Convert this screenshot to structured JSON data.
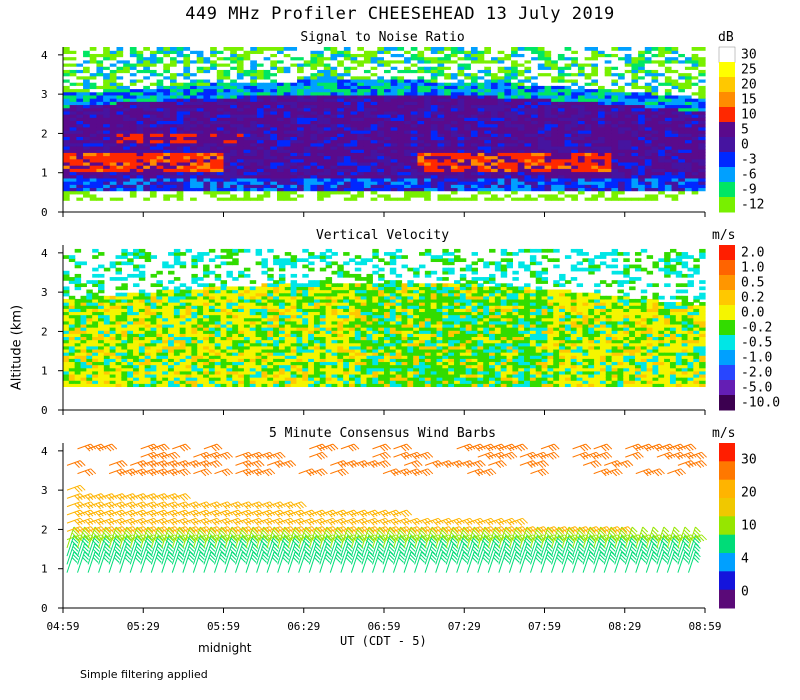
{
  "main_title": "449 MHz Profiler CHEESEHEAD 13 July 2019",
  "y_axis_label": "Altitude (km)",
  "x_axis_label": "UT  (CDT - 5)",
  "midnight_label": "midnight",
  "footnote": "Simple filtering applied",
  "chart_data": [
    {
      "type": "heatmap",
      "title": "Signal to Noise Ratio",
      "unit": "dB",
      "xlabel": "UT  (CDT - 5)",
      "ylabel": "Altitude (km)",
      "x_ticks": [
        "04:59",
        "05:29",
        "05:59",
        "06:29",
        "06:59",
        "07:29",
        "07:59",
        "08:29",
        "08:59"
      ],
      "y_ticks": [
        "0",
        "1",
        "2",
        "3",
        "4"
      ],
      "ylim": [
        0,
        4.2
      ],
      "colorbar": {
        "labels": [
          "30",
          "25",
          "20",
          "15",
          "10",
          "5",
          "0",
          "-3",
          "-6",
          "-9",
          "-12"
        ],
        "colors": [
          "#ffffff",
          "#ffff00",
          "#ffc800",
          "#ff8c00",
          "#ff2800",
          "#5a0a8c",
          "#4614a0",
          "#0028ff",
          "#00a0ff",
          "#00e664",
          "#78f000"
        ]
      }
    },
    {
      "type": "heatmap",
      "title": "Vertical Velocity",
      "unit": "m/s",
      "xlabel": "UT  (CDT - 5)",
      "ylabel": "Altitude (km)",
      "x_ticks": [
        "04:59",
        "05:29",
        "05:59",
        "06:29",
        "06:59",
        "07:29",
        "07:59",
        "08:29",
        "08:59"
      ],
      "y_ticks": [
        "0",
        "1",
        "2",
        "3",
        "4"
      ],
      "ylim": [
        0,
        4.2
      ],
      "colorbar": {
        "labels": [
          "2.0",
          "1.0",
          "0.5",
          "0.2",
          "0.0",
          "-0.2",
          "-0.5",
          "-1.0",
          "-2.0",
          "-5.0",
          "-10.0"
        ],
        "colors": [
          "#ff1e00",
          "#ff6400",
          "#ff9600",
          "#ffc800",
          "#f5f500",
          "#32dc00",
          "#00e6e6",
          "#00a0ff",
          "#2846ff",
          "#641eb4",
          "#3c0050"
        ]
      }
    },
    {
      "type": "scatter",
      "title": "5 Minute Consensus Wind Barbs",
      "unit": "m/s",
      "xlabel": "UT  (CDT - 5)",
      "ylabel": "Altitude (km)",
      "x_ticks": [
        "04:59",
        "05:29",
        "05:59",
        "06:29",
        "06:59",
        "07:29",
        "07:59",
        "08:29",
        "08:59"
      ],
      "y_ticks": [
        "0",
        "1",
        "2",
        "3",
        "4"
      ],
      "ylim": [
        0,
        4.2
      ],
      "colorbar": {
        "labels": [
          "30",
          "20",
          "10",
          "4",
          "0"
        ],
        "colors": [
          "#ff1e00",
          "#ff7800",
          "#ffb400",
          "#f0c800",
          "#96e600",
          "#00dc78",
          "#00a0ff",
          "#1414dc",
          "#5a0a78"
        ]
      }
    }
  ]
}
